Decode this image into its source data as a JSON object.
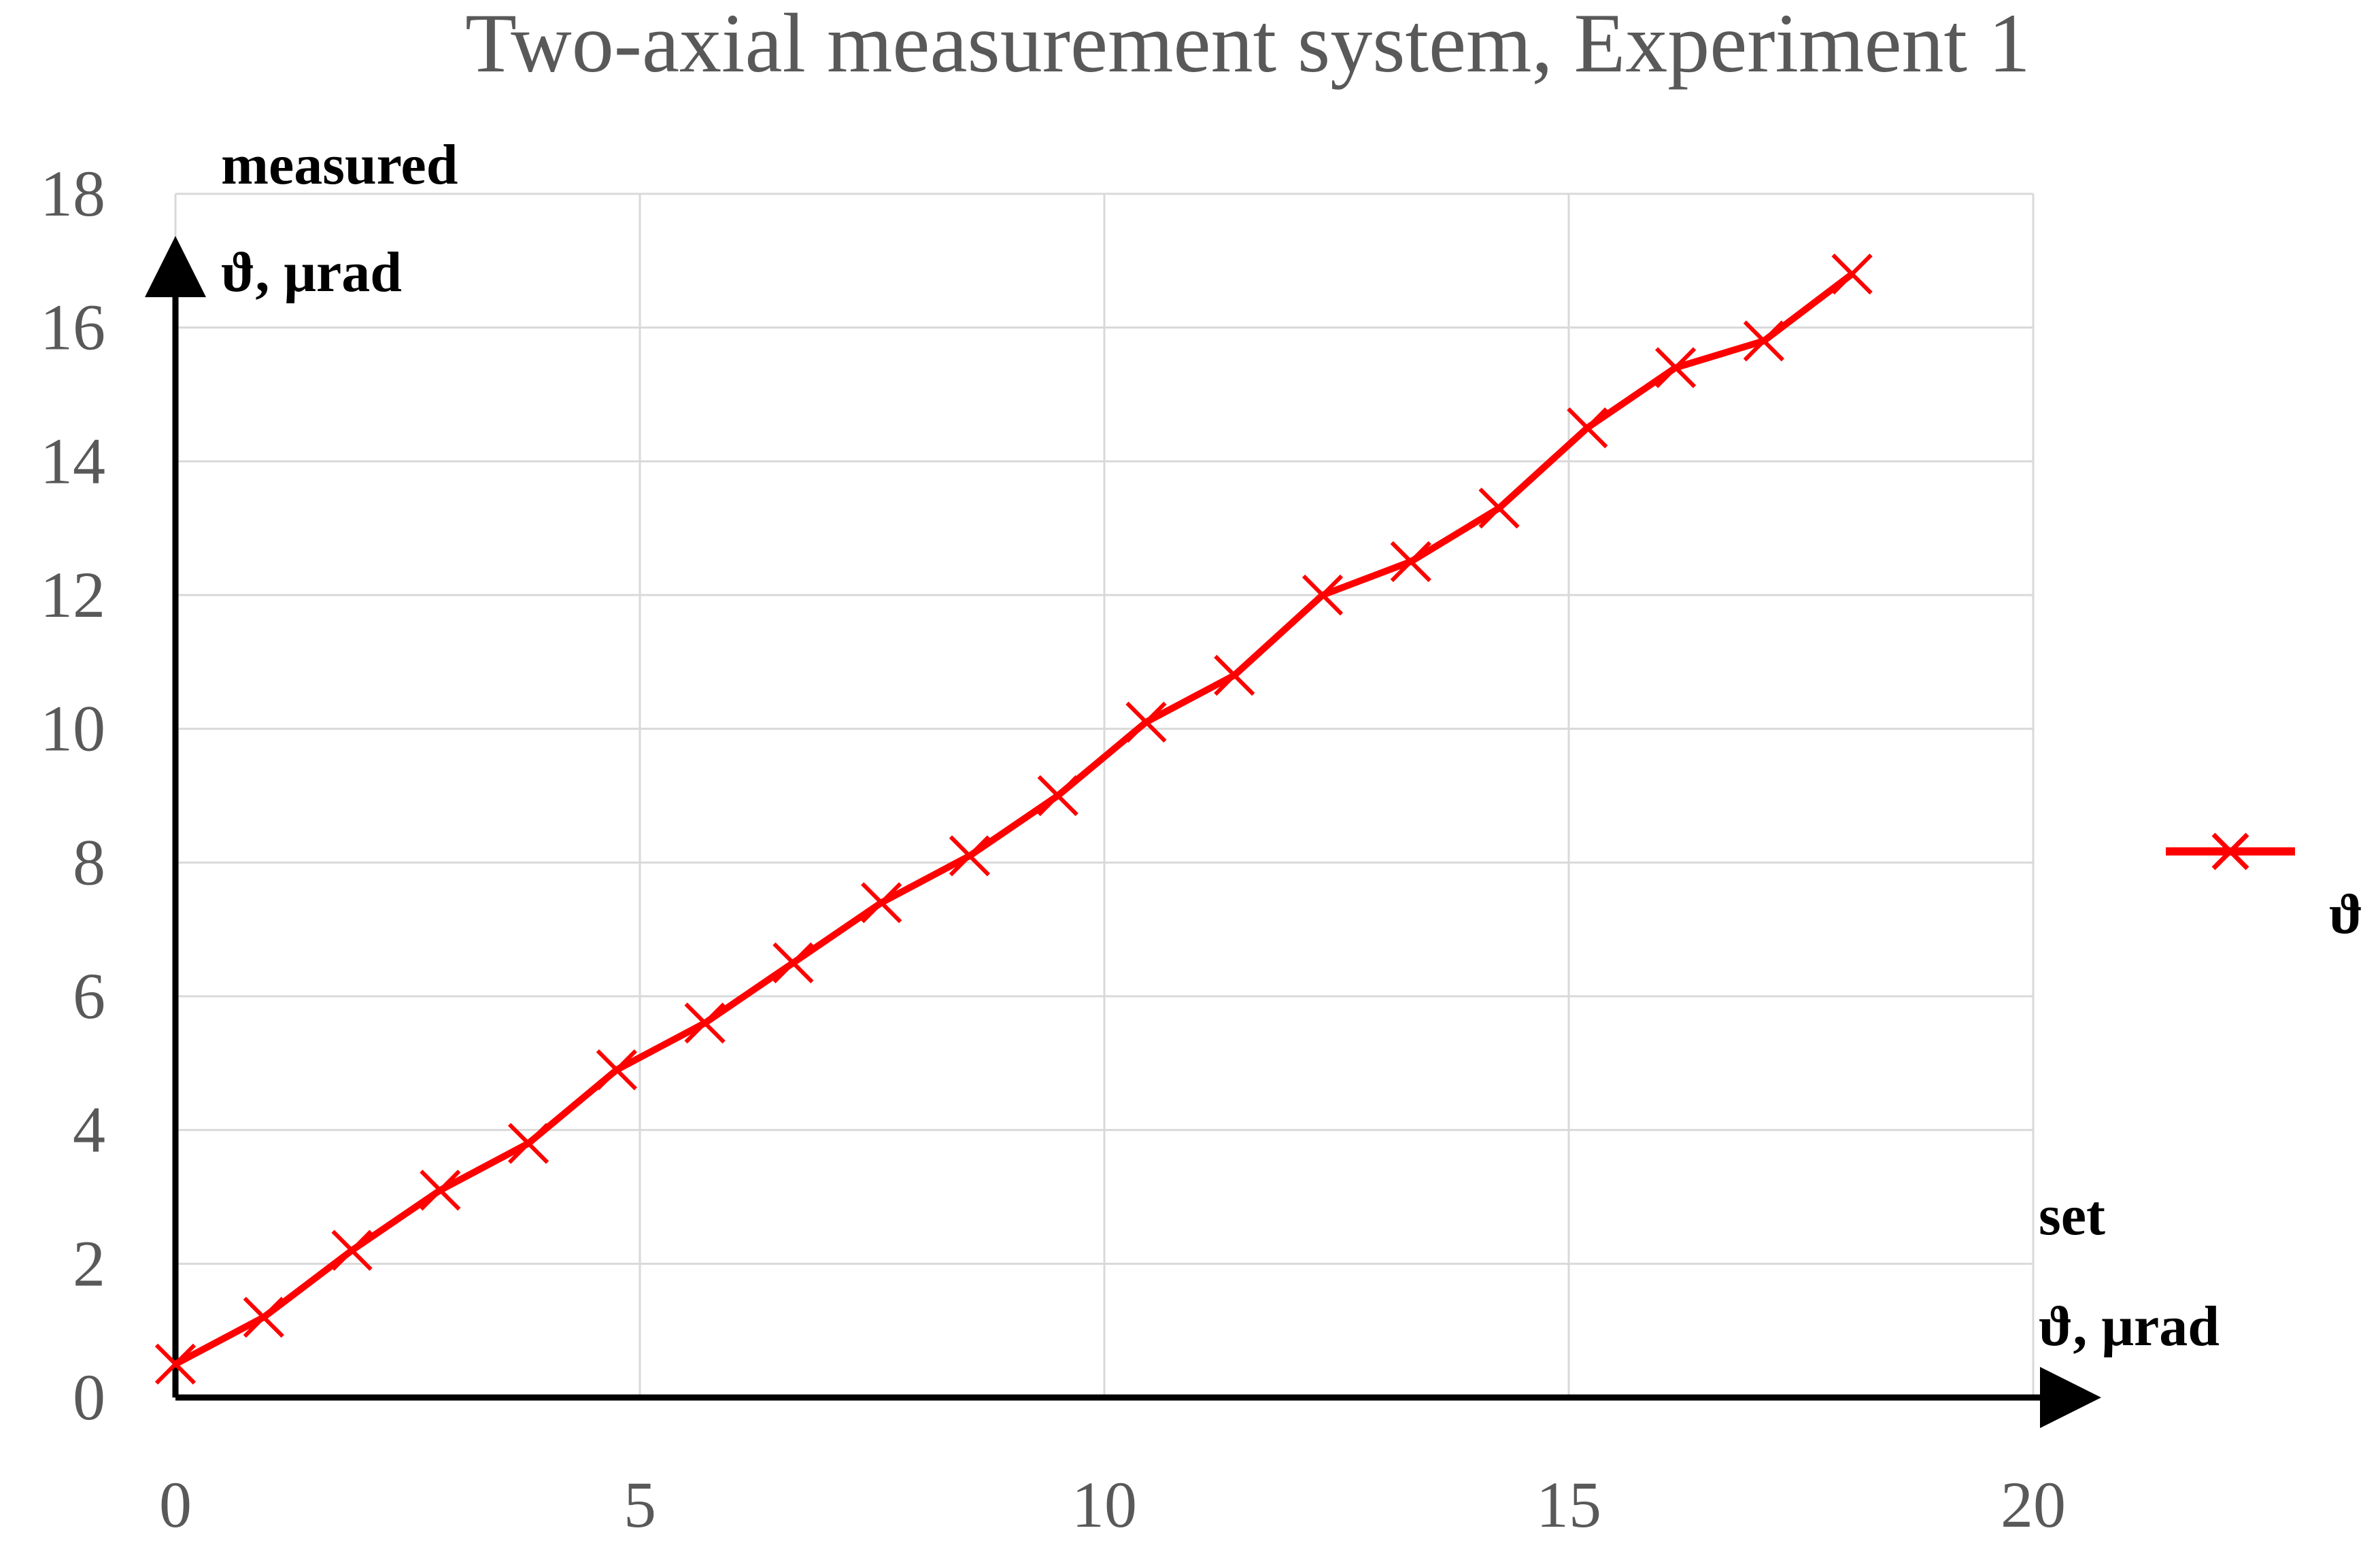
{
  "chart_data": {
    "type": "line",
    "title": "Two-axial measurement system, Experiment 1",
    "xlabel_line1": "set",
    "xlabel_line2": "ϑ, μrad",
    "ylabel_line1": "measured",
    "ylabel_line2": "ϑ, μrad",
    "xlim": [
      0,
      20
    ],
    "ylim": [
      0,
      18
    ],
    "xticks": [
      0,
      5,
      10,
      15,
      20
    ],
    "yticks": [
      0,
      2,
      4,
      6,
      8,
      10,
      12,
      14,
      16,
      18
    ],
    "grid": true,
    "legend_position": "right",
    "series": [
      {
        "name": "ϑ",
        "color": "#ff0000",
        "marker": "x",
        "x": [
          0,
          0.95,
          1.9,
          2.85,
          3.8,
          4.75,
          5.7,
          6.65,
          7.6,
          8.55,
          9.5,
          10.45,
          11.4,
          12.35,
          13.3,
          14.25,
          15.2,
          16.15,
          17.1,
          18.05
        ],
        "y": [
          0.5,
          1.2,
          2.2,
          3.1,
          3.8,
          4.9,
          5.6,
          6.5,
          7.4,
          8.1,
          9.0,
          10.1,
          10.8,
          12.0,
          12.5,
          13.3,
          14.5,
          15.4,
          15.8,
          16.8
        ]
      }
    ]
  }
}
